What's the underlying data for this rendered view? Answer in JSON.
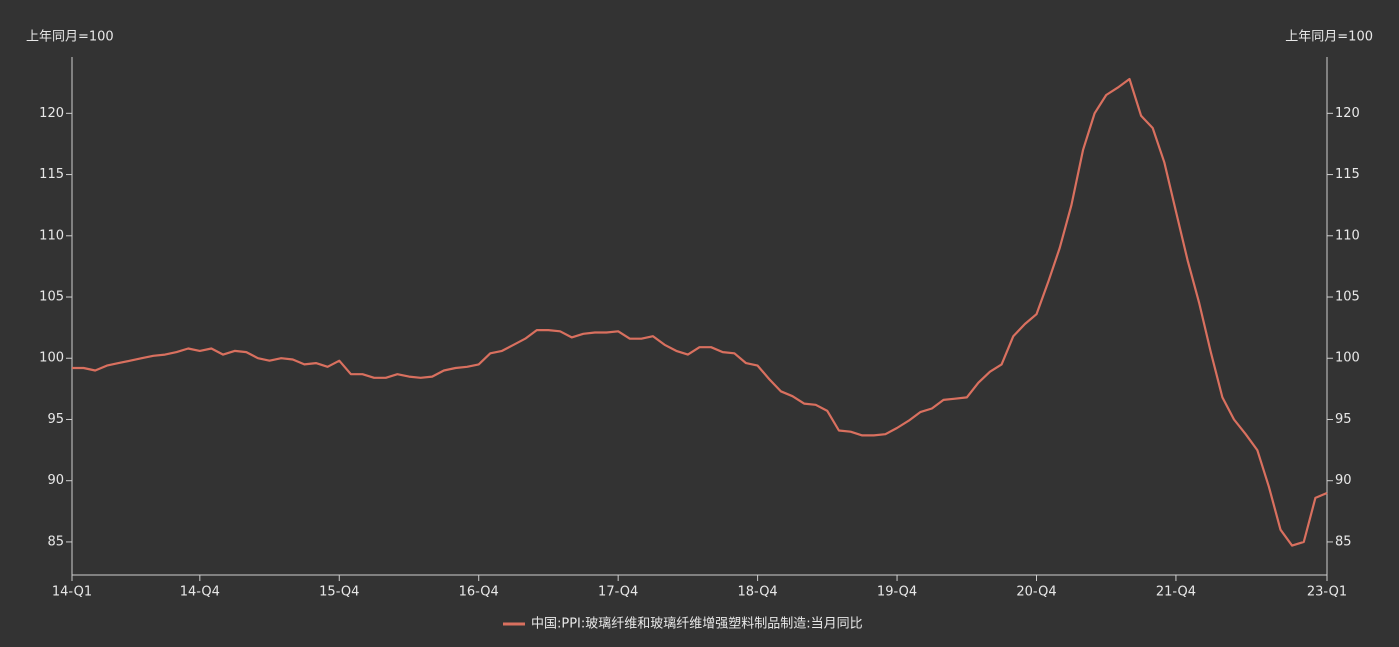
{
  "chart_data": {
    "type": "line",
    "y_label": "上年同月=100",
    "y2_label": "上年同月=100",
    "categories": [
      "14-Q1",
      null,
      null,
      null,
      null,
      null,
      null,
      null,
      null,
      null,
      null,
      "14-Q4",
      null,
      null,
      null,
      null,
      null,
      null,
      null,
      null,
      null,
      null,
      null,
      "15-Q4",
      null,
      null,
      null,
      null,
      null,
      null,
      null,
      null,
      null,
      null,
      null,
      "16-Q4",
      null,
      null,
      null,
      null,
      null,
      null,
      null,
      null,
      null,
      null,
      null,
      "17-Q4",
      null,
      null,
      null,
      null,
      null,
      null,
      null,
      null,
      null,
      null,
      null,
      "18-Q4",
      null,
      null,
      null,
      null,
      null,
      null,
      null,
      null,
      null,
      null,
      null,
      "19-Q4",
      null,
      null,
      null,
      null,
      null,
      null,
      null,
      null,
      null,
      null,
      null,
      "20-Q4",
      null,
      null,
      null,
      null,
      null,
      null,
      null,
      null,
      null,
      null,
      null,
      "21-Q4",
      null,
      null,
      null,
      null,
      null,
      null,
      null,
      null,
      null,
      null,
      null,
      null,
      "23-Q1"
    ],
    "series": [
      {
        "name": "中国:PPI:玻璃纤维和玻璃纤维增强塑料制品制造:当月同比",
        "color": "#d9705f",
        "values": [
          99.2,
          99.2,
          99.0,
          99.4,
          99.6,
          99.8,
          100.0,
          100.2,
          100.3,
          100.5,
          100.8,
          100.6,
          100.8,
          100.3,
          100.6,
          100.5,
          100.0,
          99.8,
          100.0,
          99.9,
          99.5,
          99.6,
          99.3,
          99.8,
          98.7,
          98.7,
          98.4,
          98.4,
          98.7,
          98.5,
          98.4,
          98.5,
          99.0,
          99.2,
          99.3,
          99.5,
          100.4,
          100.6,
          101.1,
          101.6,
          102.3,
          102.3,
          102.2,
          101.7,
          102.0,
          102.1,
          102.1,
          102.2,
          101.6,
          101.6,
          101.8,
          101.1,
          100.6,
          100.3,
          100.9,
          100.9,
          100.5,
          100.4,
          99.6,
          99.4,
          98.3,
          97.3,
          96.9,
          96.3,
          96.2,
          95.7,
          94.1,
          94.0,
          93.7,
          93.7,
          93.8,
          94.3,
          94.9,
          95.6,
          95.9,
          96.6,
          96.7,
          96.8,
          98.0,
          98.9,
          99.5,
          101.8,
          102.8,
          103.6,
          106.2,
          109.0,
          112.5,
          117.0,
          120.0,
          121.5,
          122.1,
          122.8,
          119.8,
          118.8,
          116.0,
          112.0,
          108.0,
          104.5,
          100.5,
          96.8,
          95.0,
          93.8,
          92.5,
          89.5,
          86.0,
          84.7,
          85.0,
          88.6,
          89.0
        ]
      }
    ],
    "ylim": [
      82.3,
      124.6
    ],
    "yticks": [
      85,
      90,
      95,
      100,
      105,
      110,
      115,
      120
    ],
    "y2lim": [
      82.3,
      124.6
    ],
    "y2ticks": [
      85,
      90,
      95,
      100,
      105,
      110,
      115,
      120
    ],
    "legend": "bottom"
  }
}
